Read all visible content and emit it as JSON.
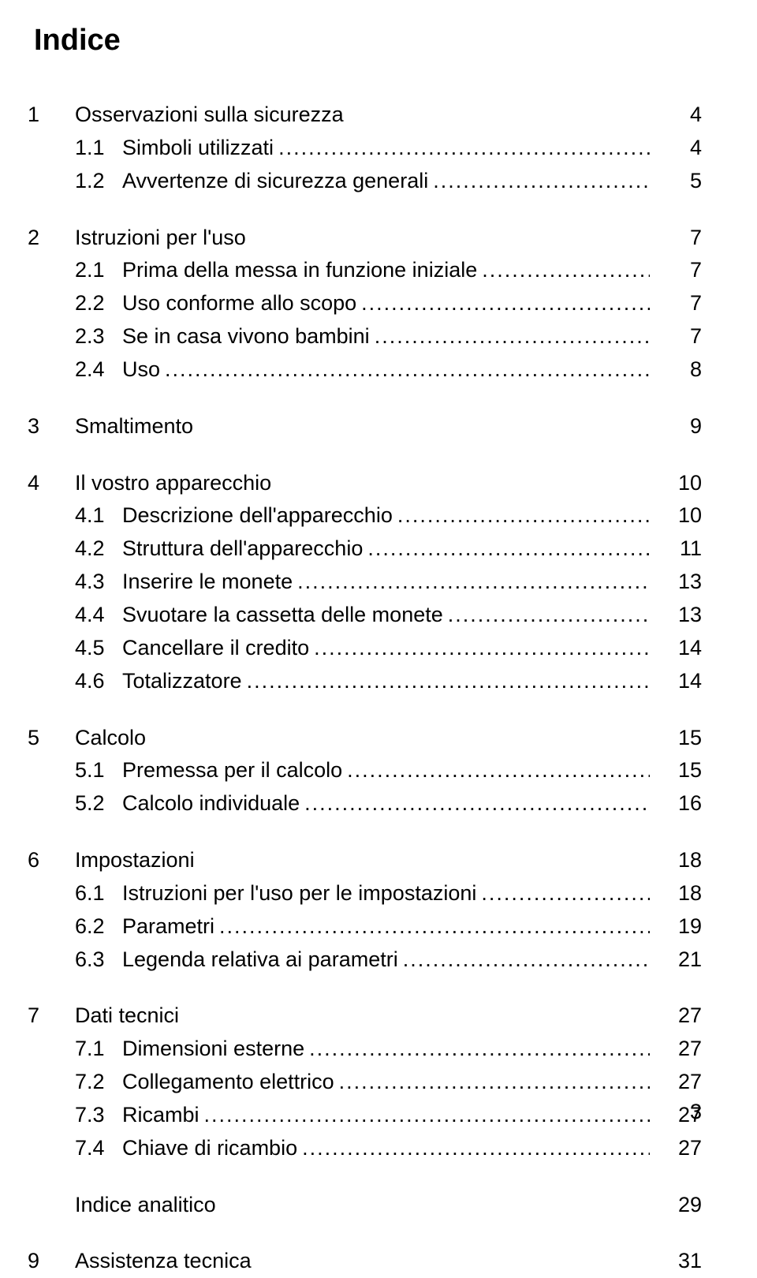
{
  "title": "Indice",
  "leader_fill": "..................................................................................................................................................................................................",
  "sections": [
    {
      "num": "1",
      "title": "Osservazioni sulla sicurezza",
      "page": "4",
      "subs": [
        {
          "num": "1.1",
          "title": "Simboli utilizzati",
          "page": "4"
        },
        {
          "num": "1.2",
          "title": "Avvertenze di sicurezza generali",
          "page": "5"
        }
      ]
    },
    {
      "num": "2",
      "title": "Istruzioni per l'uso",
      "page": "7",
      "subs": [
        {
          "num": "2.1",
          "title": "Prima della messa in funzione iniziale",
          "page": "7"
        },
        {
          "num": "2.2",
          "title": "Uso conforme allo scopo",
          "page": "7"
        },
        {
          "num": "2.3",
          "title": "Se in casa vivono bambini",
          "page": "7"
        },
        {
          "num": "2.4",
          "title": "Uso",
          "page": "8"
        }
      ]
    },
    {
      "num": "3",
      "title": "Smaltimento",
      "page": "9",
      "subs": []
    },
    {
      "num": "4",
      "title": "Il vostro apparecchio",
      "page": "10",
      "subs": [
        {
          "num": "4.1",
          "title": "Descrizione dell'apparecchio",
          "page": "10"
        },
        {
          "num": "4.2",
          "title": "Struttura dell'apparecchio",
          "page": "11"
        },
        {
          "num": "4.3",
          "title": "Inserire le monete",
          "page": "13"
        },
        {
          "num": "4.4",
          "title": "Svuotare la cassetta delle monete",
          "page": "13"
        },
        {
          "num": "4.5",
          "title": "Cancellare il credito",
          "page": "14"
        },
        {
          "num": "4.6",
          "title": "Totalizzatore",
          "page": "14"
        }
      ]
    },
    {
      "num": "5",
      "title": "Calcolo",
      "page": "15",
      "subs": [
        {
          "num": "5.1",
          "title": "Premessa per il calcolo",
          "page": "15"
        },
        {
          "num": "5.2",
          "title": "Calcolo individuale",
          "page": "16"
        }
      ]
    },
    {
      "num": "6",
      "title": "Impostazioni",
      "page": "18",
      "subs": [
        {
          "num": "6.1",
          "title": "Istruzioni per l'uso per le impostazioni",
          "page": "18"
        },
        {
          "num": "6.2",
          "title": "Parametri",
          "page": "19"
        },
        {
          "num": "6.3",
          "title": "Legenda relativa ai parametri",
          "page": "21"
        }
      ]
    },
    {
      "num": "7",
      "title": "Dati tecnici",
      "page": "27",
      "subs": [
        {
          "num": "7.1",
          "title": "Dimensioni esterne",
          "page": "27"
        },
        {
          "num": "7.2",
          "title": "Collegamento elettrico",
          "page": "27"
        },
        {
          "num": "7.3",
          "title": "Ricambi",
          "page": "27"
        },
        {
          "num": "7.4",
          "title": "Chiave di ricambio",
          "page": "27"
        }
      ]
    },
    {
      "num": "",
      "title": "Indice analitico",
      "page": "29",
      "subs": []
    },
    {
      "num": "9",
      "title": "Assistenza tecnica",
      "page": "31",
      "subs": []
    }
  ],
  "footer_page": "3"
}
